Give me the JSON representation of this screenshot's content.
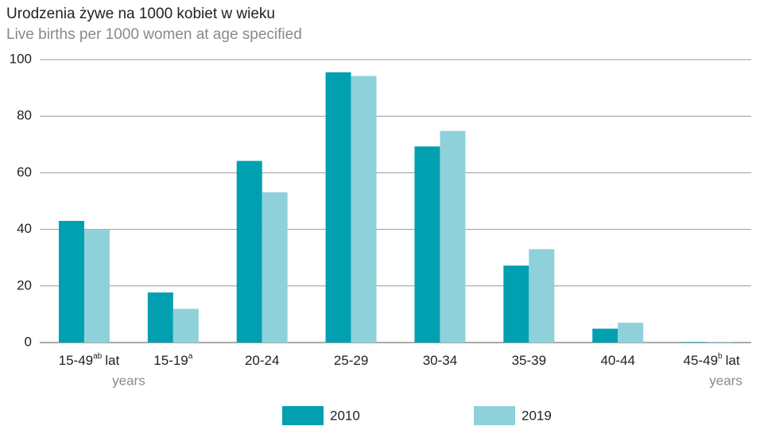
{
  "chart_data": {
    "type": "bar",
    "title": "Urodzenia żywe na 1000 kobiet w wieku",
    "subtitle": "Live births per 1000 women at age specified",
    "categories": [
      "15-49",
      "15-19",
      "20-24",
      "25-29",
      "30-34",
      "35-39",
      "40-44",
      "45-49"
    ],
    "category_superscripts": [
      "ab",
      "a",
      null,
      null,
      null,
      null,
      null,
      "b"
    ],
    "unit_labels": [
      "lat",
      "years"
    ],
    "series": [
      {
        "name": "2010",
        "color": "#00a0b0",
        "values": [
          43,
          17.7,
          64.2,
          95.5,
          69.3,
          27.2,
          4.9,
          0.2
        ]
      },
      {
        "name": "2019",
        "color": "#8ed1da",
        "values": [
          39.8,
          11.9,
          53.1,
          94.2,
          74.8,
          33.0,
          7.0,
          0.3
        ]
      }
    ],
    "ylim": [
      0,
      100
    ],
    "yticks": [
      0,
      20,
      40,
      60,
      80,
      100
    ],
    "grid": true,
    "legend": "bottom"
  }
}
